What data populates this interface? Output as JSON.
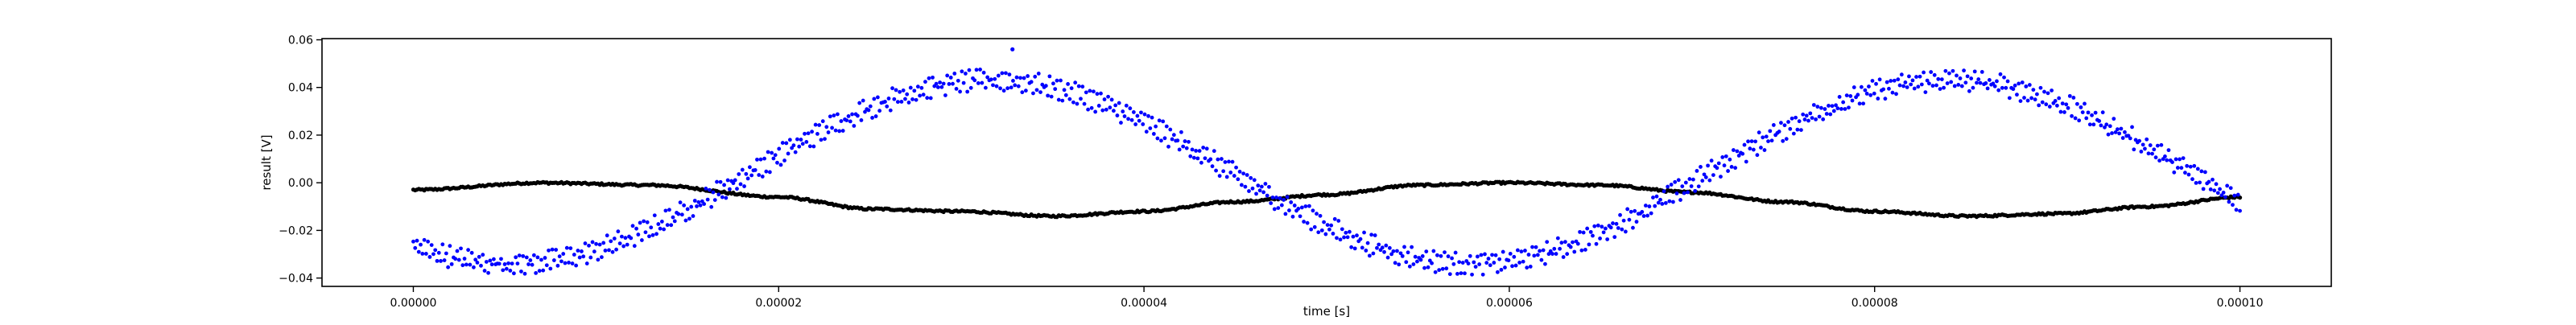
{
  "chart_data": {
    "type": "scatter",
    "title": "",
    "xlabel": "time [s]",
    "ylabel": "result [V]",
    "xlim": [
      -5e-06,
      0.000105
    ],
    "ylim": [
      -0.0435,
      0.0605
    ],
    "x_ticks": [
      0,
      2e-05,
      4e-05,
      6e-05,
      8e-05,
      0.0001
    ],
    "x_tick_labels": [
      "0.00000",
      "0.00002",
      "0.00004",
      "0.00006",
      "0.00008",
      "0.00010"
    ],
    "y_ticks": [
      -0.04,
      -0.02,
      0,
      0.02,
      0.04,
      0.06
    ],
    "y_tick_labels": [
      "−0.04",
      "−0.02",
      "0.00",
      "0.02",
      "0.04",
      "0.06"
    ],
    "grid": false,
    "legend": "none",
    "x_range": [
      0,
      0.0001
    ],
    "samples_per_series": 1000,
    "series": [
      {
        "color": "#0000ff",
        "marker": "circle",
        "shape": "noisy sinusoid, two interleaved traces",
        "period": 5.25e-05,
        "amplitude": 0.0385,
        "center": 0.0045,
        "trace_offset": 0.0045,
        "noise_amplitude": 0.0025,
        "key_points": [
          {
            "x": 0.0,
            "y": -0.022
          },
          {
            "x": 6.5e-06,
            "y": -0.03
          },
          {
            "x": 1.8e-05,
            "y": -0.005
          },
          {
            "x": 3.2e-05,
            "y": 0.04
          },
          {
            "x": 4.5e-05,
            "y": 0.01
          },
          {
            "x": 5.8e-05,
            "y": -0.03
          },
          {
            "x": 7.2e-05,
            "y": -0.002
          },
          {
            "x": 8.5e-05,
            "y": 0.04
          },
          {
            "x": 0.0001,
            "y": 0.003
          }
        ],
        "outliers": [
          {
            "x": 3.28e-05,
            "y": 0.056
          }
        ]
      },
      {
        "color": "#000000",
        "marker": "circle",
        "shape": "smooth slow oscillation",
        "key_points": [
          {
            "x": 0.0,
            "y": -0.003
          },
          {
            "x": 7e-06,
            "y": 0.0
          },
          {
            "x": 1.3e-05,
            "y": -0.001
          },
          {
            "x": 2e-05,
            "y": -0.006
          },
          {
            "x": 2.5e-05,
            "y": -0.011
          },
          {
            "x": 3e-05,
            "y": -0.012
          },
          {
            "x": 3.5e-05,
            "y": -0.014
          },
          {
            "x": 4e-05,
            "y": -0.012
          },
          {
            "x": 4.5e-05,
            "y": -0.008
          },
          {
            "x": 5e-05,
            "y": -0.005
          },
          {
            "x": 5.5e-05,
            "y": -0.001
          },
          {
            "x": 6e-05,
            "y": 0.0
          },
          {
            "x": 6.5e-05,
            "y": -0.001
          },
          {
            "x": 7e-05,
            "y": -0.004
          },
          {
            "x": 7.5e-05,
            "y": -0.008
          },
          {
            "x": 8e-05,
            "y": -0.012
          },
          {
            "x": 8.5e-05,
            "y": -0.014
          },
          {
            "x": 9e-05,
            "y": -0.013
          },
          {
            "x": 9.5e-05,
            "y": -0.01
          },
          {
            "x": 0.0001,
            "y": -0.006
          }
        ]
      }
    ]
  }
}
